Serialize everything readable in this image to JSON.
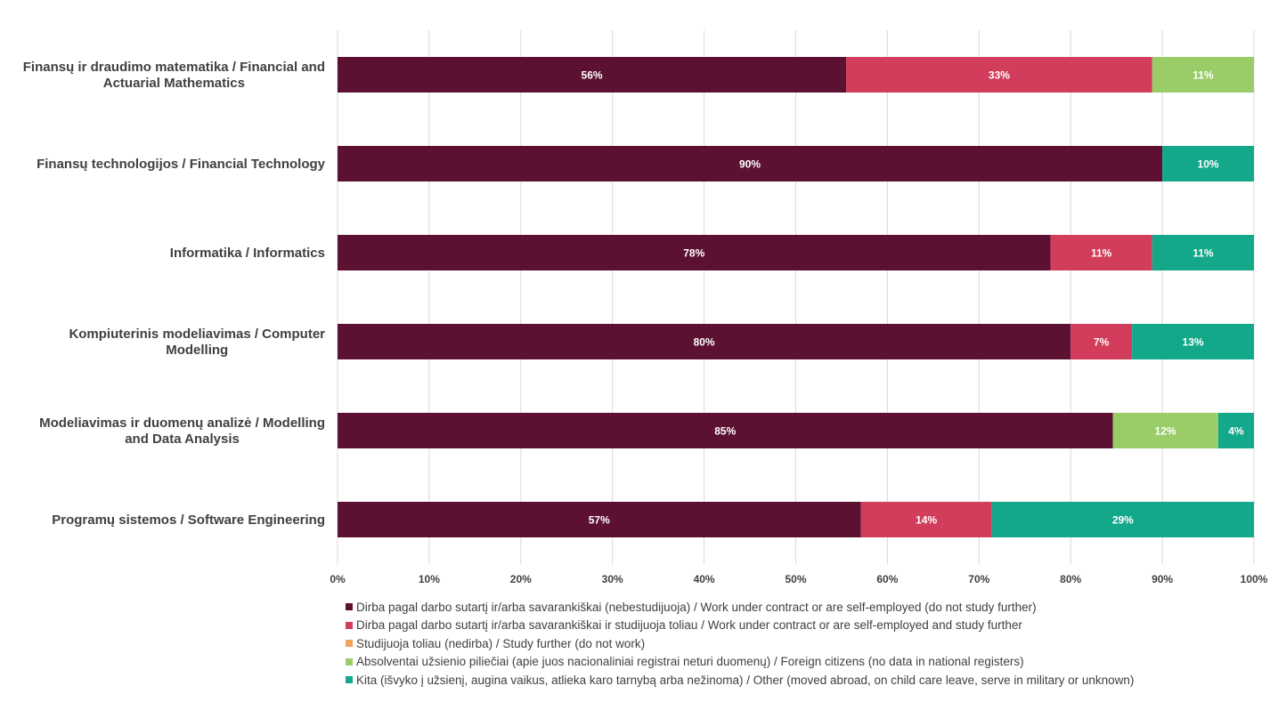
{
  "chart_data": {
    "type": "bar",
    "orientation": "horizontal",
    "stacked": true,
    "categories": [
      [
        "Finansų ir draudimo matematika / Financial and",
        "Actuarial Mathematics"
      ],
      [
        "Finansų technologijos / Financial Technology"
      ],
      [
        "Informatika / Informatics"
      ],
      [
        "Kompiuterinis modeliavimas / Computer",
        "Modelling"
      ],
      [
        "Modeliavimas ir duomenų analizė / Modelling",
        "and Data Analysis"
      ],
      [
        "Programų sistemos / Software Engineering"
      ]
    ],
    "series": [
      {
        "name": "Dirba pagal darbo sutartį ir/arba savarankiškai (nebestudijuoja) / Work under contract or are self-employed (do not study further)",
        "color": "#5c1133",
        "values": [
          55.5,
          90,
          77.8,
          80,
          84.6,
          57.1
        ],
        "labels": [
          "56%",
          "90%",
          "78%",
          "80%",
          "85%",
          "57%"
        ]
      },
      {
        "name": "Dirba pagal darbo sutartį ir/arba savarankiškai  ir studijuoja toliau / Work under contract or are self-employed and study further",
        "color": "#d13d5a",
        "values": [
          33.4,
          0,
          11.1,
          6.7,
          0,
          14.3
        ],
        "labels": [
          "33%",
          "",
          "11%",
          "7%",
          "",
          "14%"
        ]
      },
      {
        "name": "Studijuoja toliau (nedirba) / Study further (do not work)",
        "color": "#f2a25a",
        "values": [
          0,
          0,
          0,
          0,
          0,
          0
        ],
        "labels": [
          "",
          "",
          "",
          "",
          "",
          ""
        ]
      },
      {
        "name": "Absolventai užsienio piliečiai (apie juos nacionaliniai registrai neturi duomenų) / Foreign citizens (no data in national registers)",
        "color": "#9acd67",
        "values": [
          11.1,
          0,
          0,
          0,
          11.5,
          0
        ],
        "labels": [
          "11%",
          "",
          "",
          "",
          "12%",
          ""
        ]
      },
      {
        "name": "Kita (išvyko į užsienį, augina vaikus, atlieka karo tarnybą arba nežinoma) / Other (moved abroad, on child care leave, serve in military or unknown)",
        "color": "#14a88a",
        "values": [
          0,
          10,
          11.1,
          13.3,
          3.9,
          28.6
        ],
        "labels": [
          "",
          "10%",
          "11%",
          "13%",
          "4%",
          "29%"
        ]
      }
    ],
    "xlim": [
      0,
      100
    ],
    "x_ticks": [
      "0%",
      "10%",
      "20%",
      "30%",
      "40%",
      "50%",
      "60%",
      "70%",
      "80%",
      "90%",
      "100%"
    ],
    "grid": true,
    "legend_position": "bottom",
    "title": "",
    "xlabel": "",
    "ylabel": "",
    "colors": {
      "gridline": "#d9d9d9",
      "text": "#404040",
      "data_label": "#ffffff"
    }
  }
}
